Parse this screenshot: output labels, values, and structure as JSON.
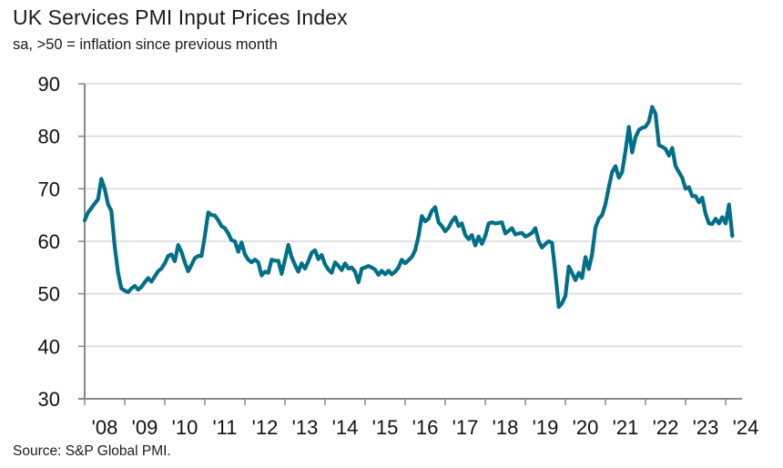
{
  "title": "UK Services PMI Input Prices Index",
  "subtitle": "sa, >50 = inflation since previous month",
  "source": "Source: S&P Global PMI.",
  "chart_data": {
    "type": "line",
    "title": "UK Services PMI Input Prices Index",
    "subtitle": "sa, >50 = inflation since previous month",
    "xlabel": "",
    "ylabel": "",
    "ylim": [
      30,
      90
    ],
    "yticks": [
      30,
      40,
      50,
      60,
      70,
      80,
      90
    ],
    "xticks": [
      "'08",
      "'09",
      "'10",
      "'11",
      "'12",
      "'13",
      "'14",
      "'15",
      "'16",
      "'17",
      "'18",
      "'19",
      "'20",
      "'21",
      "'22",
      "'23",
      "'24"
    ],
    "x_start": "2008-01",
    "x_frequency": "monthly",
    "grid": true,
    "legend": "none",
    "line_color": "#006f87",
    "series": [
      {
        "name": "UK Services PMI Input Prices Index",
        "values": [
          64.0,
          65.5,
          66.3,
          67.2,
          68.0,
          71.9,
          70.0,
          67.0,
          65.8,
          59.0,
          54.0,
          51.0,
          50.6,
          50.3,
          51.0,
          51.5,
          50.8,
          51.3,
          52.2,
          53.0,
          52.3,
          53.3,
          54.3,
          54.8,
          55.8,
          57.2,
          57.5,
          56.2,
          59.3,
          58.0,
          56.0,
          54.3,
          55.5,
          56.8,
          57.2,
          57.2,
          61.0,
          65.5,
          65.0,
          64.9,
          64.0,
          62.9,
          62.5,
          61.5,
          60.2,
          60.0,
          58.0,
          59.8,
          57.5,
          56.5,
          56.0,
          56.5,
          56.0,
          53.5,
          54.2,
          54.0,
          56.5,
          56.3,
          56.3,
          53.8,
          56.5,
          59.3,
          57.0,
          55.5,
          54.2,
          55.8,
          54.8,
          56.2,
          57.8,
          58.3,
          56.6,
          57.4,
          55.6,
          54.6,
          54.0,
          56.0,
          55.3,
          54.5,
          55.8,
          54.8,
          55.0,
          54.2,
          52.2,
          54.8,
          55.0,
          55.3,
          55.0,
          54.6,
          53.6,
          54.4,
          53.7,
          54.4,
          53.7,
          54.2,
          55.0,
          56.5,
          55.8,
          56.4,
          57.0,
          58.3,
          61.0,
          64.8,
          63.8,
          64.3,
          65.8,
          66.5,
          63.6,
          62.9,
          61.9,
          62.6,
          63.8,
          64.6,
          62.9,
          63.4,
          61.2,
          60.4,
          61.2,
          59.2,
          60.9,
          59.5,
          61.0,
          63.4,
          63.6,
          63.4,
          63.5,
          63.6,
          61.5,
          62.0,
          62.5,
          61.3,
          61.5,
          61.6,
          60.9,
          61.2,
          61.6,
          62.5,
          60.0,
          58.8,
          59.5,
          60.0,
          59.7,
          54.0,
          47.5,
          48.2,
          49.6,
          55.2,
          54.0,
          52.6,
          54.0,
          53.0,
          57.0,
          54.7,
          57.5,
          62.6,
          64.3,
          65.0,
          67.1,
          70.3,
          73.2,
          74.3,
          72.1,
          73.2,
          77.2,
          81.8,
          76.9,
          79.8,
          81.2,
          81.6,
          81.8,
          82.8,
          85.6,
          84.3,
          78.3,
          78.0,
          77.6,
          76.3,
          77.8,
          74.3,
          73.2,
          72.1,
          70.0,
          70.3,
          68.6,
          68.6,
          67.4,
          68.3,
          65.2,
          63.4,
          63.3,
          64.3,
          63.4,
          64.6,
          63.4,
          67.0,
          61.0
        ]
      }
    ]
  }
}
